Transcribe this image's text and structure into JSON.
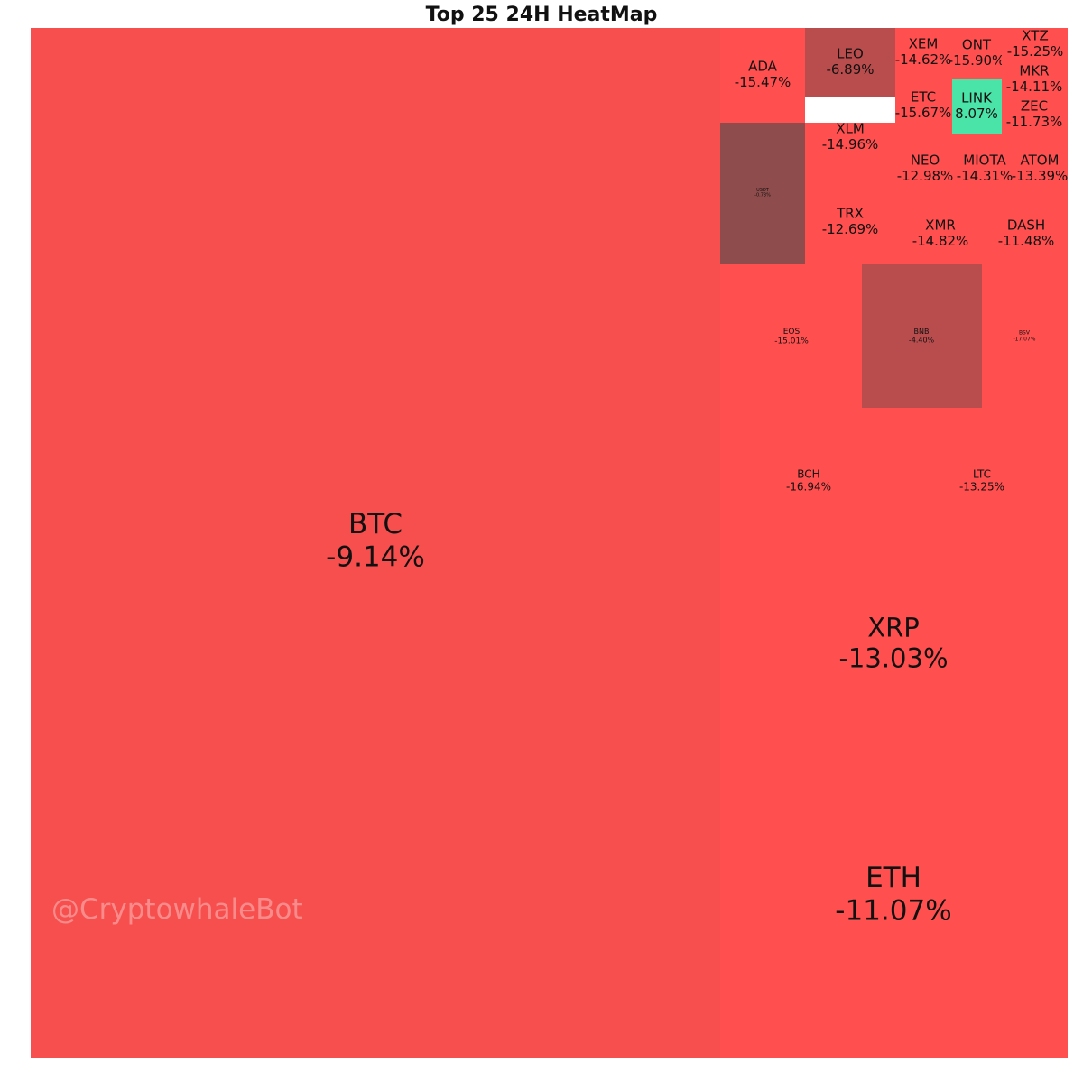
{
  "chart_data": {
    "type": "heatmap",
    "title": "Top 25 24H HeatMap",
    "watermark": "@CryptowhaleBot",
    "colors": {
      "negative": "#f74e4e",
      "strong_negative": "#ff4f4f",
      "mild_negative": "#b94d4d",
      "neutral": "#8e4c4c",
      "positive": "#4ae3a8"
    },
    "items": [
      {
        "symbol": "BTC",
        "change": "-9.14%",
        "value": -9.14
      },
      {
        "symbol": "ETH",
        "change": "-11.07%",
        "value": -11.07
      },
      {
        "symbol": "XRP",
        "change": "-13.03%",
        "value": -13.03
      },
      {
        "symbol": "BCH",
        "change": "-16.94%",
        "value": -16.94
      },
      {
        "symbol": "LTC",
        "change": "-13.25%",
        "value": -13.25
      },
      {
        "symbol": "EOS",
        "change": "-15.01%",
        "value": -15.01
      },
      {
        "symbol": "BNB",
        "change": "-4.40%",
        "value": -4.4
      },
      {
        "symbol": "BSV",
        "change": "-17.07%",
        "value": -17.07
      },
      {
        "symbol": "USDT",
        "change": "-0.73%",
        "value": -0.73
      },
      {
        "symbol": "XLM",
        "change": "-14.96%",
        "value": -14.96
      },
      {
        "symbol": "TRX",
        "change": "-12.69%",
        "value": -12.69
      },
      {
        "symbol": "ADA",
        "change": "-15.47%",
        "value": -15.47
      },
      {
        "symbol": "LEO",
        "change": "-6.89%",
        "value": -6.89
      },
      {
        "symbol": "XMR",
        "change": "-14.82%",
        "value": -14.82
      },
      {
        "symbol": "DASH",
        "change": "-11.48%",
        "value": -11.48
      },
      {
        "symbol": "NEO",
        "change": "-12.98%",
        "value": -12.98
      },
      {
        "symbol": "MIOTA",
        "change": "-14.31%",
        "value": -14.31
      },
      {
        "symbol": "ATOM",
        "change": "-13.39%",
        "value": -13.39
      },
      {
        "symbol": "ETC",
        "change": "-15.67%",
        "value": -15.67
      },
      {
        "symbol": "LINK",
        "change": "8.07%",
        "value": 8.07
      },
      {
        "symbol": "ZEC",
        "change": "-11.73%",
        "value": -11.73
      },
      {
        "symbol": "XEM",
        "change": "-14.62%",
        "value": -14.62
      },
      {
        "symbol": "ONT",
        "change": "-15.90%",
        "value": -15.9
      },
      {
        "symbol": "XTZ",
        "change": "-15.25%",
        "value": -15.25
      },
      {
        "symbol": "MKR",
        "change": "-14.11%",
        "value": -14.11
      }
    ]
  }
}
